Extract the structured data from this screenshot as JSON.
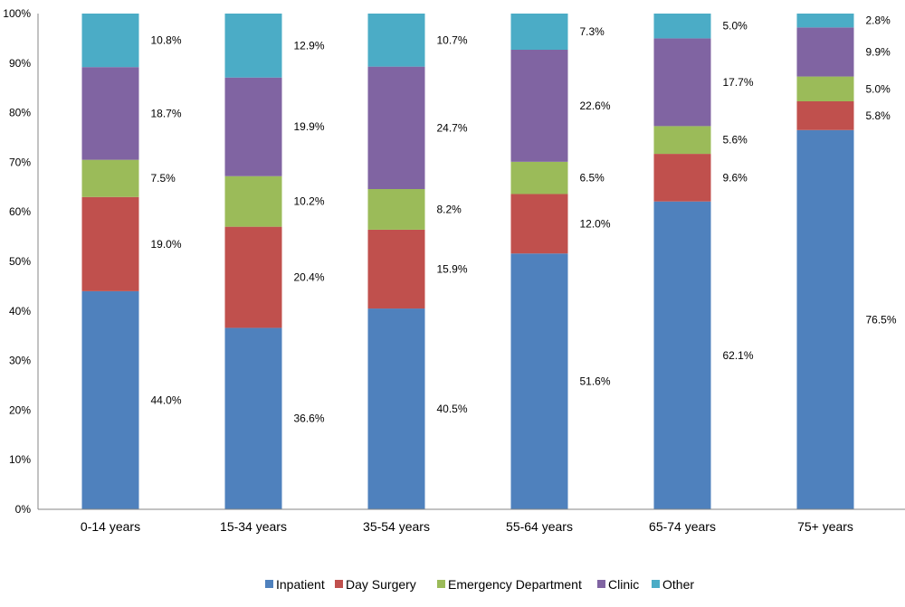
{
  "chart_data": {
    "type": "bar",
    "stacked": true,
    "categories": [
      "0-14 years",
      "15-34 years",
      "35-54 years",
      "55-64 years",
      "65-74 years",
      "75+ years"
    ],
    "series": [
      {
        "name": "Inpatient",
        "color": "#4F81BD",
        "values": [
          44.0,
          36.6,
          40.5,
          51.6,
          62.1,
          76.5
        ],
        "labels": [
          "44.0%",
          "36.6%",
          "40.5%",
          "51.6%",
          "62.1%",
          "76.5%"
        ]
      },
      {
        "name": "Day Surgery",
        "color": "#C0504D",
        "values": [
          19.0,
          20.4,
          15.9,
          12.0,
          9.6,
          5.8
        ],
        "labels": [
          "19.0%",
          "20.4%",
          "15.9%",
          "12.0%",
          "9.6%",
          "5.8%"
        ]
      },
      {
        "name": "Emergency Department",
        "color": "#9BBB59",
        "values": [
          7.5,
          10.2,
          8.2,
          6.5,
          5.6,
          5.0
        ],
        "labels": [
          "7.5%",
          "10.2%",
          "8.2%",
          "6.5%",
          "5.6%",
          "5.0%"
        ]
      },
      {
        "name": "Clinic",
        "color": "#8064A2",
        "values": [
          18.7,
          19.9,
          24.7,
          22.6,
          17.7,
          9.9
        ],
        "labels": [
          "18.7%",
          "19.9%",
          "24.7%",
          "22.6%",
          "17.7%",
          "9.9%"
        ]
      },
      {
        "name": "Other",
        "color": "#4BACC6",
        "values": [
          10.8,
          12.9,
          10.7,
          7.3,
          5.0,
          2.8
        ],
        "labels": [
          "10.8%",
          "12.9%",
          "10.7%",
          "7.3%",
          "5.0%",
          "2.8%"
        ]
      }
    ],
    "ylim": [
      0,
      100
    ],
    "yticks": [
      "0%",
      "10%",
      "20%",
      "30%",
      "40%",
      "50%",
      "60%",
      "70%",
      "80%",
      "90%",
      "100%"
    ],
    "grid": false,
    "legend_position": "bottom",
    "title": "",
    "xlabel": "",
    "ylabel": ""
  }
}
